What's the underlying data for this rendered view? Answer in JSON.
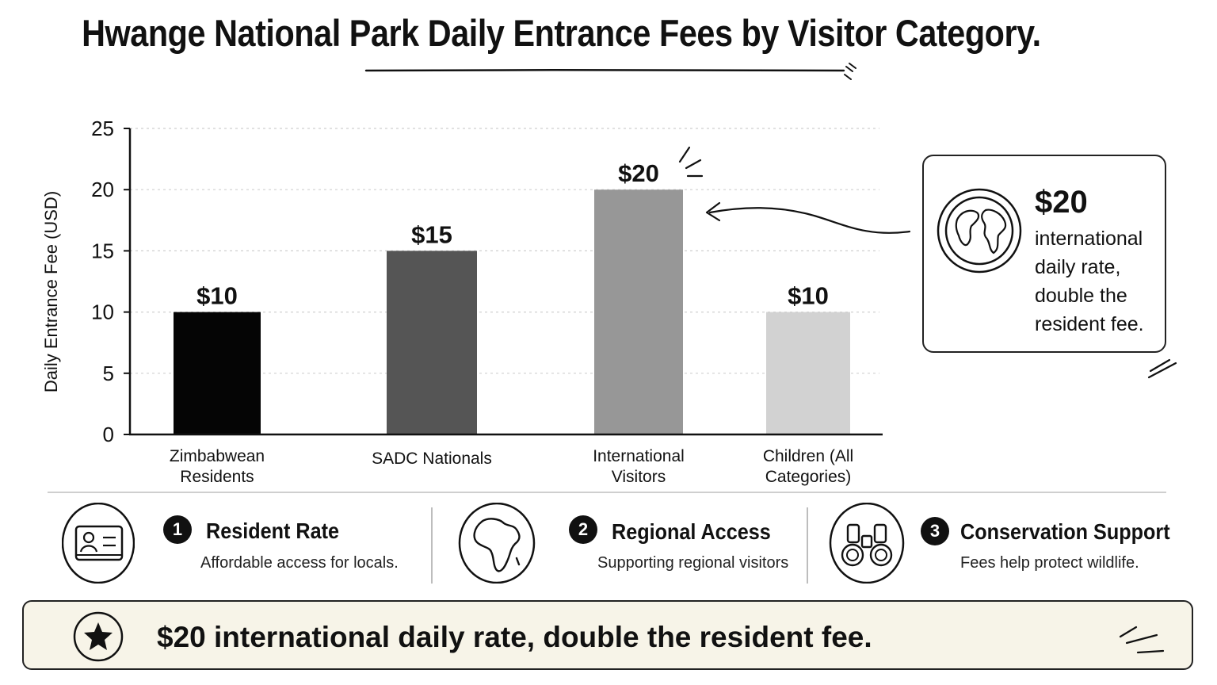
{
  "title": "Hwange National Park Daily Entrance Fees by Visitor Category.",
  "chart_data": {
    "type": "bar",
    "title": "Hwange National Park Daily Entrance Fees by Visitor Category.",
    "xlabel": "",
    "ylabel": "Daily Entrance Fee (USD)",
    "ylim": [
      0,
      25
    ],
    "yticks": [
      0,
      5,
      10,
      15,
      20,
      25
    ],
    "grid": true,
    "categories": [
      [
        "Zimbabwean",
        "Residents"
      ],
      [
        "SADC Nationals"
      ],
      [
        "International",
        "Visitors"
      ],
      [
        "Children (All",
        "Categories)"
      ]
    ],
    "values": [
      10,
      15,
      20,
      10
    ],
    "data_labels": [
      "$10",
      "$15",
      "$20",
      "$10"
    ],
    "bar_colors": [
      "#050505",
      "#555555",
      "#979797",
      "#d2d2d2"
    ]
  },
  "callout": {
    "value": "$20",
    "text": "international daily rate, double the resident fee.",
    "icon": "globe-icon"
  },
  "features": [
    {
      "number": "1",
      "title": "Resident Rate",
      "desc": "Affordable access for locals.",
      "icon": "id-card-icon"
    },
    {
      "number": "2",
      "title": "Regional Access",
      "desc": "Supporting regional visitors",
      "icon": "africa-map-icon"
    },
    {
      "number": "3",
      "title": "Conservation Support",
      "desc": "Fees help protect wildlife.",
      "icon": "binoculars-icon"
    }
  ],
  "banner": {
    "text": "$20 international daily rate, double the resident fee.",
    "icon": "star-icon"
  }
}
